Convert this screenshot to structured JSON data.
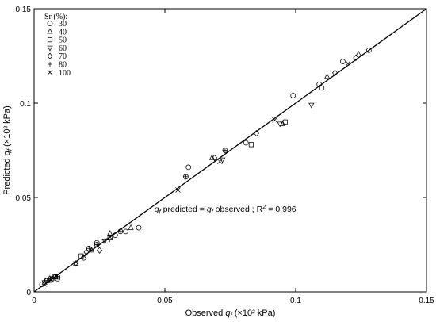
{
  "chart_data": {
    "type": "scatter",
    "xlabel_prefix": "Observed ",
    "xlabel_var": "q",
    "xlabel_sub": "f",
    "xlabel_suffix": " (×10² kPa)",
    "ylabel_prefix": "Predicted ",
    "ylabel_var": "q",
    "ylabel_sub": "f",
    "ylabel_suffix": " (×10² kPa)",
    "xlim": [
      0,
      0.15
    ],
    "ylim": [
      0,
      0.15
    ],
    "x_ticks": [
      0,
      0.05,
      0.1,
      0.15
    ],
    "x_tick_labels": [
      "0",
      "0.05",
      "0.1",
      "0.15"
    ],
    "y_ticks": [
      0,
      0.05,
      0.1,
      0.15
    ],
    "y_tick_labels": [
      "0",
      "0.05",
      "0.1",
      "0.15"
    ],
    "grid": false,
    "legend_title": "Sr (%):",
    "legend_position": "top-left",
    "annotation": {
      "var1": "q",
      "sub1": "f",
      "mid": " predicted = ",
      "var2": "q",
      "sub2": "f",
      "tail": " observed ; R",
      "sup": "2",
      "end": " = 0.996",
      "x": 0.046,
      "y": 0.0425
    },
    "fit_line": {
      "x": [
        0,
        0.15
      ],
      "y": [
        0,
        0.15
      ]
    },
    "series": [
      {
        "name": "30",
        "marker": "circle",
        "points": [
          [
            0.118,
            0.122
          ],
          [
            0.099,
            0.104
          ],
          [
            0.128,
            0.128
          ],
          [
            0.109,
            0.11
          ],
          [
            0.081,
            0.079
          ],
          [
            0.059,
            0.066
          ],
          [
            0.04,
            0.034
          ],
          [
            0.035,
            0.032
          ],
          [
            0.031,
            0.03
          ],
          [
            0.028,
            0.027
          ],
          [
            0.024,
            0.026
          ],
          [
            0.019,
            0.018
          ],
          [
            0.009,
            0.007
          ],
          [
            0.007,
            0.007
          ],
          [
            0.005,
            0.006
          ],
          [
            0.003,
            0.004
          ]
        ]
      },
      {
        "name": "40",
        "marker": "triangle-up",
        "points": [
          [
            0.124,
            0.126
          ],
          [
            0.112,
            0.114
          ],
          [
            0.095,
            0.089
          ],
          [
            0.068,
            0.071
          ],
          [
            0.037,
            0.034
          ],
          [
            0.029,
            0.031
          ],
          [
            0.022,
            0.022
          ],
          [
            0.016,
            0.015
          ],
          [
            0.006,
            0.006
          ],
          [
            0.004,
            0.005
          ]
        ]
      },
      {
        "name": "50",
        "marker": "square",
        "points": [
          [
            0.083,
            0.078
          ],
          [
            0.096,
            0.09
          ],
          [
            0.11,
            0.108
          ],
          [
            0.029,
            0.029
          ],
          [
            0.018,
            0.019
          ],
          [
            0.008,
            0.008
          ],
          [
            0.005,
            0.006
          ]
        ]
      },
      {
        "name": "60",
        "marker": "triangle-down",
        "points": [
          [
            0.094,
            0.089
          ],
          [
            0.072,
            0.07
          ],
          [
            0.106,
            0.099
          ],
          [
            0.027,
            0.027
          ],
          [
            0.016,
            0.015
          ],
          [
            0.007,
            0.007
          ],
          [
            0.004,
            0.005
          ]
        ]
      },
      {
        "name": "70",
        "marker": "diamond",
        "points": [
          [
            0.085,
            0.084
          ],
          [
            0.115,
            0.116
          ],
          [
            0.123,
            0.124
          ],
          [
            0.069,
            0.071
          ],
          [
            0.025,
            0.022
          ],
          [
            0.02,
            0.021
          ],
          [
            0.008,
            0.008
          ],
          [
            0.006,
            0.007
          ]
        ]
      },
      {
        "name": "80",
        "marker": "plus-circle",
        "points": [
          [
            0.058,
            0.061
          ],
          [
            0.073,
            0.075
          ],
          [
            0.033,
            0.032
          ],
          [
            0.024,
            0.025
          ],
          [
            0.021,
            0.023
          ],
          [
            0.009,
            0.008
          ],
          [
            0.005,
            0.006
          ]
        ]
      },
      {
        "name": "100",
        "marker": "x",
        "points": [
          [
            0.055,
            0.054
          ],
          [
            0.071,
            0.069
          ],
          [
            0.092,
            0.091
          ],
          [
            0.12,
            0.121
          ],
          [
            0.029,
            0.029
          ],
          [
            0.019,
            0.019
          ],
          [
            0.004,
            0.004
          ]
        ]
      }
    ]
  }
}
